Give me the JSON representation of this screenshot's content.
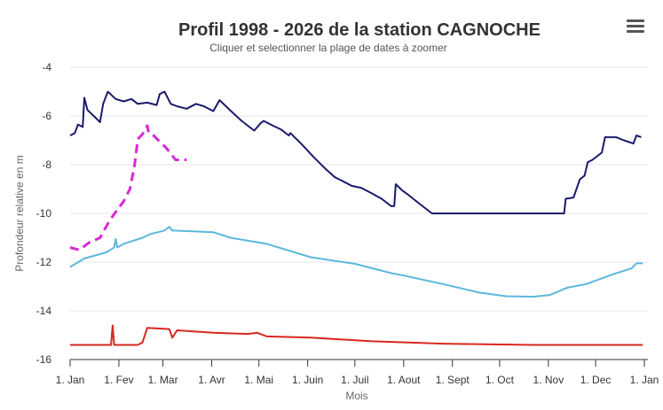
{
  "chart_data": {
    "type": "line",
    "title": "Profil 1998 - 2026 de la station CAGNOCHE",
    "subtitle": "Cliquer et selectionner la plage de dates à zoomer",
    "xlabel": "Mois",
    "ylabel": "Profondeur relative en m",
    "x_ticks": [
      "1. Jan",
      "1. Fev",
      "1. Mar",
      "1. Avr",
      "1. Mai",
      "1. Juin",
      "1. Juil",
      "1. Aout",
      "1. Sept",
      "1. Oct",
      "1. Nov",
      "1. Dec",
      "1. Jan"
    ],
    "y_ticks": [
      -4,
      -6,
      -8,
      -10,
      -12,
      -14,
      -16
    ],
    "ylim": [
      -16,
      -4
    ],
    "xlim": [
      "01-01",
      "12-31"
    ],
    "grid": "horizontal",
    "legend": "none",
    "series": [
      {
        "color": "#1a1a6e",
        "dash": "solid",
        "points": [
          [
            "01-01",
            -6.8
          ],
          [
            "01-04",
            -6.7
          ],
          [
            "01-06",
            -6.35
          ],
          [
            "01-09",
            -6.45
          ],
          [
            "01-10",
            -5.25
          ],
          [
            "01-12",
            -5.75
          ],
          [
            "01-16",
            -6.0
          ],
          [
            "01-20",
            -6.25
          ],
          [
            "01-22",
            -5.5
          ],
          [
            "01-25",
            -5.0
          ],
          [
            "01-30",
            -5.3
          ],
          [
            "02-04",
            -5.4
          ],
          [
            "02-09",
            -5.3
          ],
          [
            "02-13",
            -5.5
          ],
          [
            "02-19",
            -5.45
          ],
          [
            "02-25",
            -5.55
          ],
          [
            "02-27",
            -5.1
          ],
          [
            "03-02",
            -5.0
          ],
          [
            "03-06",
            -5.5
          ],
          [
            "03-10",
            -5.6
          ],
          [
            "03-16",
            -5.7
          ],
          [
            "03-22",
            -5.5
          ],
          [
            "03-27",
            -5.6
          ],
          [
            "04-02",
            -5.8
          ],
          [
            "04-06",
            -5.35
          ],
          [
            "04-13",
            -5.78
          ],
          [
            "04-20",
            -6.2
          ],
          [
            "04-28",
            -6.6
          ],
          [
            "05-02",
            -6.3
          ],
          [
            "05-04",
            -6.2
          ],
          [
            "05-10",
            -6.4
          ],
          [
            "05-15",
            -6.55
          ],
          [
            "05-20",
            -6.8
          ],
          [
            "05-21",
            -6.7
          ],
          [
            "05-28",
            -7.15
          ],
          [
            "06-05",
            -7.7
          ],
          [
            "06-12",
            -8.15
          ],
          [
            "06-18",
            -8.5
          ],
          [
            "06-24",
            -8.7
          ],
          [
            "06-29",
            -8.87
          ],
          [
            "07-05",
            -8.95
          ],
          [
            "07-11",
            -9.15
          ],
          [
            "07-18",
            -9.4
          ],
          [
            "07-24",
            -9.7
          ],
          [
            "07-26",
            -9.7
          ],
          [
            "07-27",
            -8.8
          ],
          [
            "07-31",
            -9.05
          ],
          [
            "08-04",
            -9.24
          ],
          [
            "08-11",
            -9.6
          ],
          [
            "08-19",
            -10.0
          ],
          [
            "11-11",
            -10.0
          ],
          [
            "11-12",
            -9.4
          ],
          [
            "11-17",
            -9.35
          ],
          [
            "11-21",
            -8.6
          ],
          [
            "11-24",
            -8.45
          ],
          [
            "11-26",
            -7.9
          ],
          [
            "11-29",
            -7.8
          ],
          [
            "12-03",
            -7.6
          ],
          [
            "12-05",
            -7.5
          ],
          [
            "12-07",
            -6.87
          ],
          [
            "12-14",
            -6.87
          ],
          [
            "12-19",
            -7.0
          ],
          [
            "12-25",
            -7.13
          ],
          [
            "12-27",
            -6.8
          ],
          [
            "12-30",
            -6.87
          ]
        ]
      },
      {
        "color": "#d62ad6",
        "dash": "dashed",
        "points": [
          [
            "01-01",
            -11.4
          ],
          [
            "01-07",
            -11.5
          ],
          [
            "01-13",
            -11.2
          ],
          [
            "01-20",
            -11.0
          ],
          [
            "01-26",
            -10.3
          ],
          [
            "01-31",
            -9.85
          ],
          [
            "02-04",
            -9.5
          ],
          [
            "02-08",
            -9.0
          ],
          [
            "02-11",
            -8.0
          ],
          [
            "02-13",
            -6.95
          ],
          [
            "02-16",
            -6.75
          ],
          [
            "02-19",
            -6.4
          ],
          [
            "02-20",
            -6.7
          ],
          [
            "02-23",
            -6.8
          ],
          [
            "03-03",
            -7.3
          ],
          [
            "03-09",
            -7.8
          ],
          [
            "03-16",
            -7.8
          ]
        ]
      },
      {
        "color": "#5bb8dc",
        "dash": "solid",
        "points": [
          [
            "01-01",
            -12.2
          ],
          [
            "01-10",
            -11.85
          ],
          [
            "01-24",
            -11.6
          ],
          [
            "01-29",
            -11.4
          ],
          [
            "01-30",
            -11.05
          ],
          [
            "01-31",
            -11.4
          ],
          [
            "02-04",
            -11.25
          ],
          [
            "02-16",
            -11.0
          ],
          [
            "02-21",
            -10.85
          ],
          [
            "03-02",
            -10.7
          ],
          [
            "03-05",
            -10.55
          ],
          [
            "03-07",
            -10.7
          ],
          [
            "04-02",
            -10.77
          ],
          [
            "04-13",
            -11.0
          ],
          [
            "05-06",
            -11.25
          ],
          [
            "06-03",
            -11.8
          ],
          [
            "07-01",
            -12.07
          ],
          [
            "07-24",
            -12.45
          ],
          [
            "08-01",
            -12.55
          ],
          [
            "08-26",
            -12.9
          ],
          [
            "09-18",
            -13.25
          ],
          [
            "10-05",
            -13.4
          ],
          [
            "10-22",
            -13.42
          ],
          [
            "11-02",
            -13.35
          ],
          [
            "11-13",
            -13.05
          ],
          [
            "11-25",
            -12.9
          ],
          [
            "12-12",
            -12.5
          ],
          [
            "12-24",
            -12.25
          ],
          [
            "12-27",
            -12.05
          ],
          [
            "12-31",
            -12.05
          ]
        ]
      },
      {
        "color": "#d9281e",
        "dash": "solid",
        "points": [
          [
            "01-01",
            -15.4
          ],
          [
            "01-27",
            -15.4
          ],
          [
            "01-28",
            -14.6
          ],
          [
            "01-29",
            -15.4
          ],
          [
            "02-13",
            -15.4
          ],
          [
            "02-16",
            -15.3
          ],
          [
            "02-19",
            -14.7
          ],
          [
            "03-05",
            -14.75
          ],
          [
            "03-07",
            -15.1
          ],
          [
            "03-10",
            -14.8
          ],
          [
            "04-02",
            -14.9
          ],
          [
            "04-24",
            -14.95
          ],
          [
            "04-30",
            -14.9
          ],
          [
            "05-06",
            -15.05
          ],
          [
            "06-03",
            -15.1
          ],
          [
            "07-12",
            -15.25
          ],
          [
            "08-26",
            -15.35
          ],
          [
            "10-22",
            -15.4
          ],
          [
            "12-31",
            -15.4
          ]
        ]
      }
    ]
  },
  "menu": {
    "icon": "hamburger-icon"
  }
}
